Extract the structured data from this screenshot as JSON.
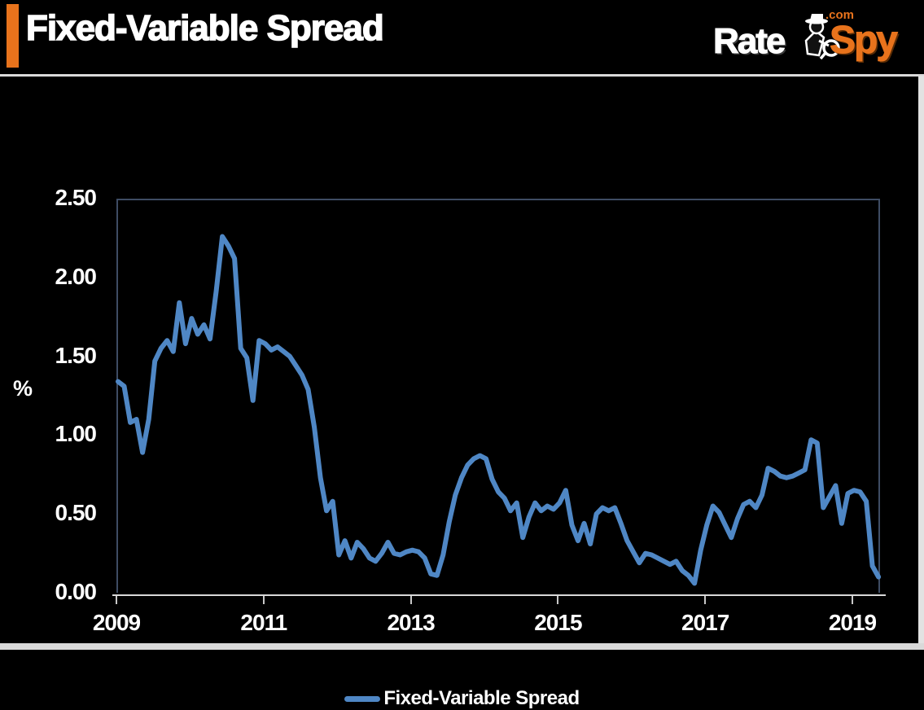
{
  "header": {
    "title": "Fixed-Variable Spread",
    "accent_color": "#E8731C",
    "logo": {
      "rate": "Rate",
      "spy": "Spy",
      "com": ".com",
      "spy_color": "#E8731C",
      "icon": "spy-detective-icon"
    }
  },
  "legend": {
    "label": "Fixed-Variable Spread"
  },
  "chart_data": {
    "type": "line",
    "title": "Fixed-Variable Spread",
    "ylabel": "%",
    "ylim": [
      0,
      2.5
    ],
    "y_tick_step": 0.5,
    "y_ticks": [
      "2.50",
      "2.00",
      "1.50",
      "1.00",
      "0.50",
      "0.00"
    ],
    "x_ticks": [
      "2009",
      "2011",
      "2013",
      "2015",
      "2017",
      "2019"
    ],
    "x_tick_interval_years": 2,
    "x_range": [
      "2009-01",
      "2019-05"
    ],
    "grid": true,
    "legend_position": "bottom",
    "background_color": "#000000",
    "gridline_color": "#828282",
    "plot_border_color": "#3E4C63",
    "axis_line_color": "#D9D9D9",
    "series": [
      {
        "name": "Fixed-Variable Spread",
        "color": "#4F87C5",
        "frequency": "monthly",
        "start": "2009-01",
        "values": [
          1.34,
          1.31,
          1.08,
          1.1,
          0.89,
          1.1,
          1.47,
          1.55,
          1.6,
          1.53,
          1.84,
          1.58,
          1.74,
          1.64,
          1.7,
          1.61,
          1.91,
          2.26,
          2.2,
          2.12,
          1.55,
          1.49,
          1.22,
          1.6,
          1.58,
          1.54,
          1.56,
          1.53,
          1.5,
          1.44,
          1.38,
          1.29,
          1.05,
          0.73,
          0.52,
          0.58,
          0.24,
          0.33,
          0.22,
          0.32,
          0.28,
          0.22,
          0.2,
          0.25,
          0.32,
          0.25,
          0.24,
          0.26,
          0.27,
          0.26,
          0.22,
          0.12,
          0.11,
          0.24,
          0.45,
          0.62,
          0.73,
          0.81,
          0.85,
          0.87,
          0.85,
          0.72,
          0.64,
          0.6,
          0.52,
          0.57,
          0.35,
          0.48,
          0.57,
          0.52,
          0.55,
          0.53,
          0.57,
          0.65,
          0.43,
          0.33,
          0.44,
          0.31,
          0.5,
          0.54,
          0.52,
          0.54,
          0.44,
          0.33,
          0.26,
          0.19,
          0.25,
          0.24,
          0.22,
          0.2,
          0.18,
          0.2,
          0.14,
          0.11,
          0.06,
          0.27,
          0.43,
          0.55,
          0.51,
          0.43,
          0.35,
          0.47,
          0.56,
          0.58,
          0.54,
          0.62,
          0.79,
          0.77,
          0.74,
          0.73,
          0.74,
          0.76,
          0.78,
          0.97,
          0.95,
          0.54,
          0.61,
          0.68,
          0.44,
          0.63,
          0.65,
          0.64,
          0.58,
          0.17,
          0.1
        ]
      }
    ]
  }
}
